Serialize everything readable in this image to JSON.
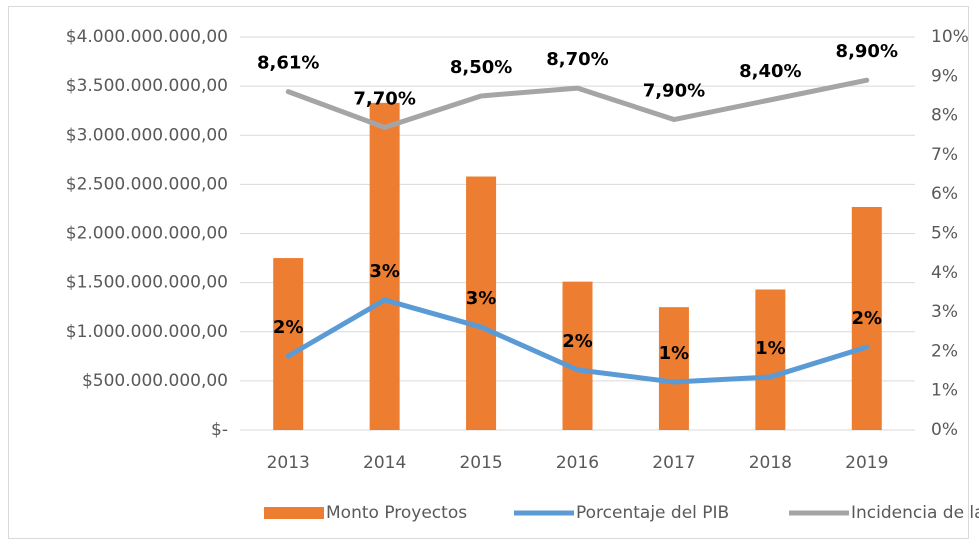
{
  "chart_data": {
    "type": "combo",
    "categories": [
      "2013",
      "2014",
      "2015",
      "2016",
      "2017",
      "2018",
      "2019"
    ],
    "series": [
      {
        "name": "Monto Proyectos",
        "type": "bar",
        "color": "#ed7d31",
        "values": [
          1750000000,
          3330000000,
          2580000000,
          1510000000,
          1250000000,
          1430000000,
          2270000000
        ]
      },
      {
        "name": "Porcentaje del PIB",
        "type": "line",
        "axis": "y2",
        "color": "#5b9bd5",
        "values": [
          1.88,
          3.31,
          2.62,
          1.53,
          1.22,
          1.35,
          2.11
        ],
        "value_labels": [
          "2%",
          "3%",
          "3%",
          "2%",
          "1%",
          "1%",
          "2%"
        ]
      },
      {
        "name": "Incidencia de la Pobreza",
        "type": "line",
        "axis": "y2",
        "color": "#a5a5a5",
        "values": [
          8.61,
          7.7,
          8.5,
          8.7,
          7.9,
          8.4,
          8.9
        ],
        "value_labels": [
          "8,61%",
          "7,70%",
          "8,50%",
          "8,70%",
          "7,90%",
          "8,40%",
          "8,90%"
        ]
      }
    ],
    "ylim": [
      0,
      4000000000
    ],
    "yticks": [
      {
        "value": 0,
        "label": "$-"
      },
      {
        "value": 500000000,
        "label": "$500.000.000,00"
      },
      {
        "value": 1000000000,
        "label": "$1.000.000.000,00"
      },
      {
        "value": 1500000000,
        "label": "$1.500.000.000,00"
      },
      {
        "value": 2000000000,
        "label": "$2.000.000.000,00"
      },
      {
        "value": 2500000000,
        "label": "$2.500.000.000,00"
      },
      {
        "value": 3000000000,
        "label": "$3.000.000.000,00"
      },
      {
        "value": 3500000000,
        "label": "$3.500.000.000,00"
      },
      {
        "value": 4000000000,
        "label": "$4.000.000.000,00"
      }
    ],
    "y2lim": [
      0,
      10
    ],
    "y2ticks": [
      {
        "value": 0,
        "label": "0%"
      },
      {
        "value": 1,
        "label": "1%"
      },
      {
        "value": 2,
        "label": "2%"
      },
      {
        "value": 3,
        "label": "3%"
      },
      {
        "value": 4,
        "label": "4%"
      },
      {
        "value": 5,
        "label": "5%"
      },
      {
        "value": 6,
        "label": "6%"
      },
      {
        "value": 7,
        "label": "7%"
      },
      {
        "value": 8,
        "label": "8%"
      },
      {
        "value": 9,
        "label": "9%"
      },
      {
        "value": 10,
        "label": "10%"
      }
    ],
    "grid": true,
    "legend": "bottom"
  }
}
